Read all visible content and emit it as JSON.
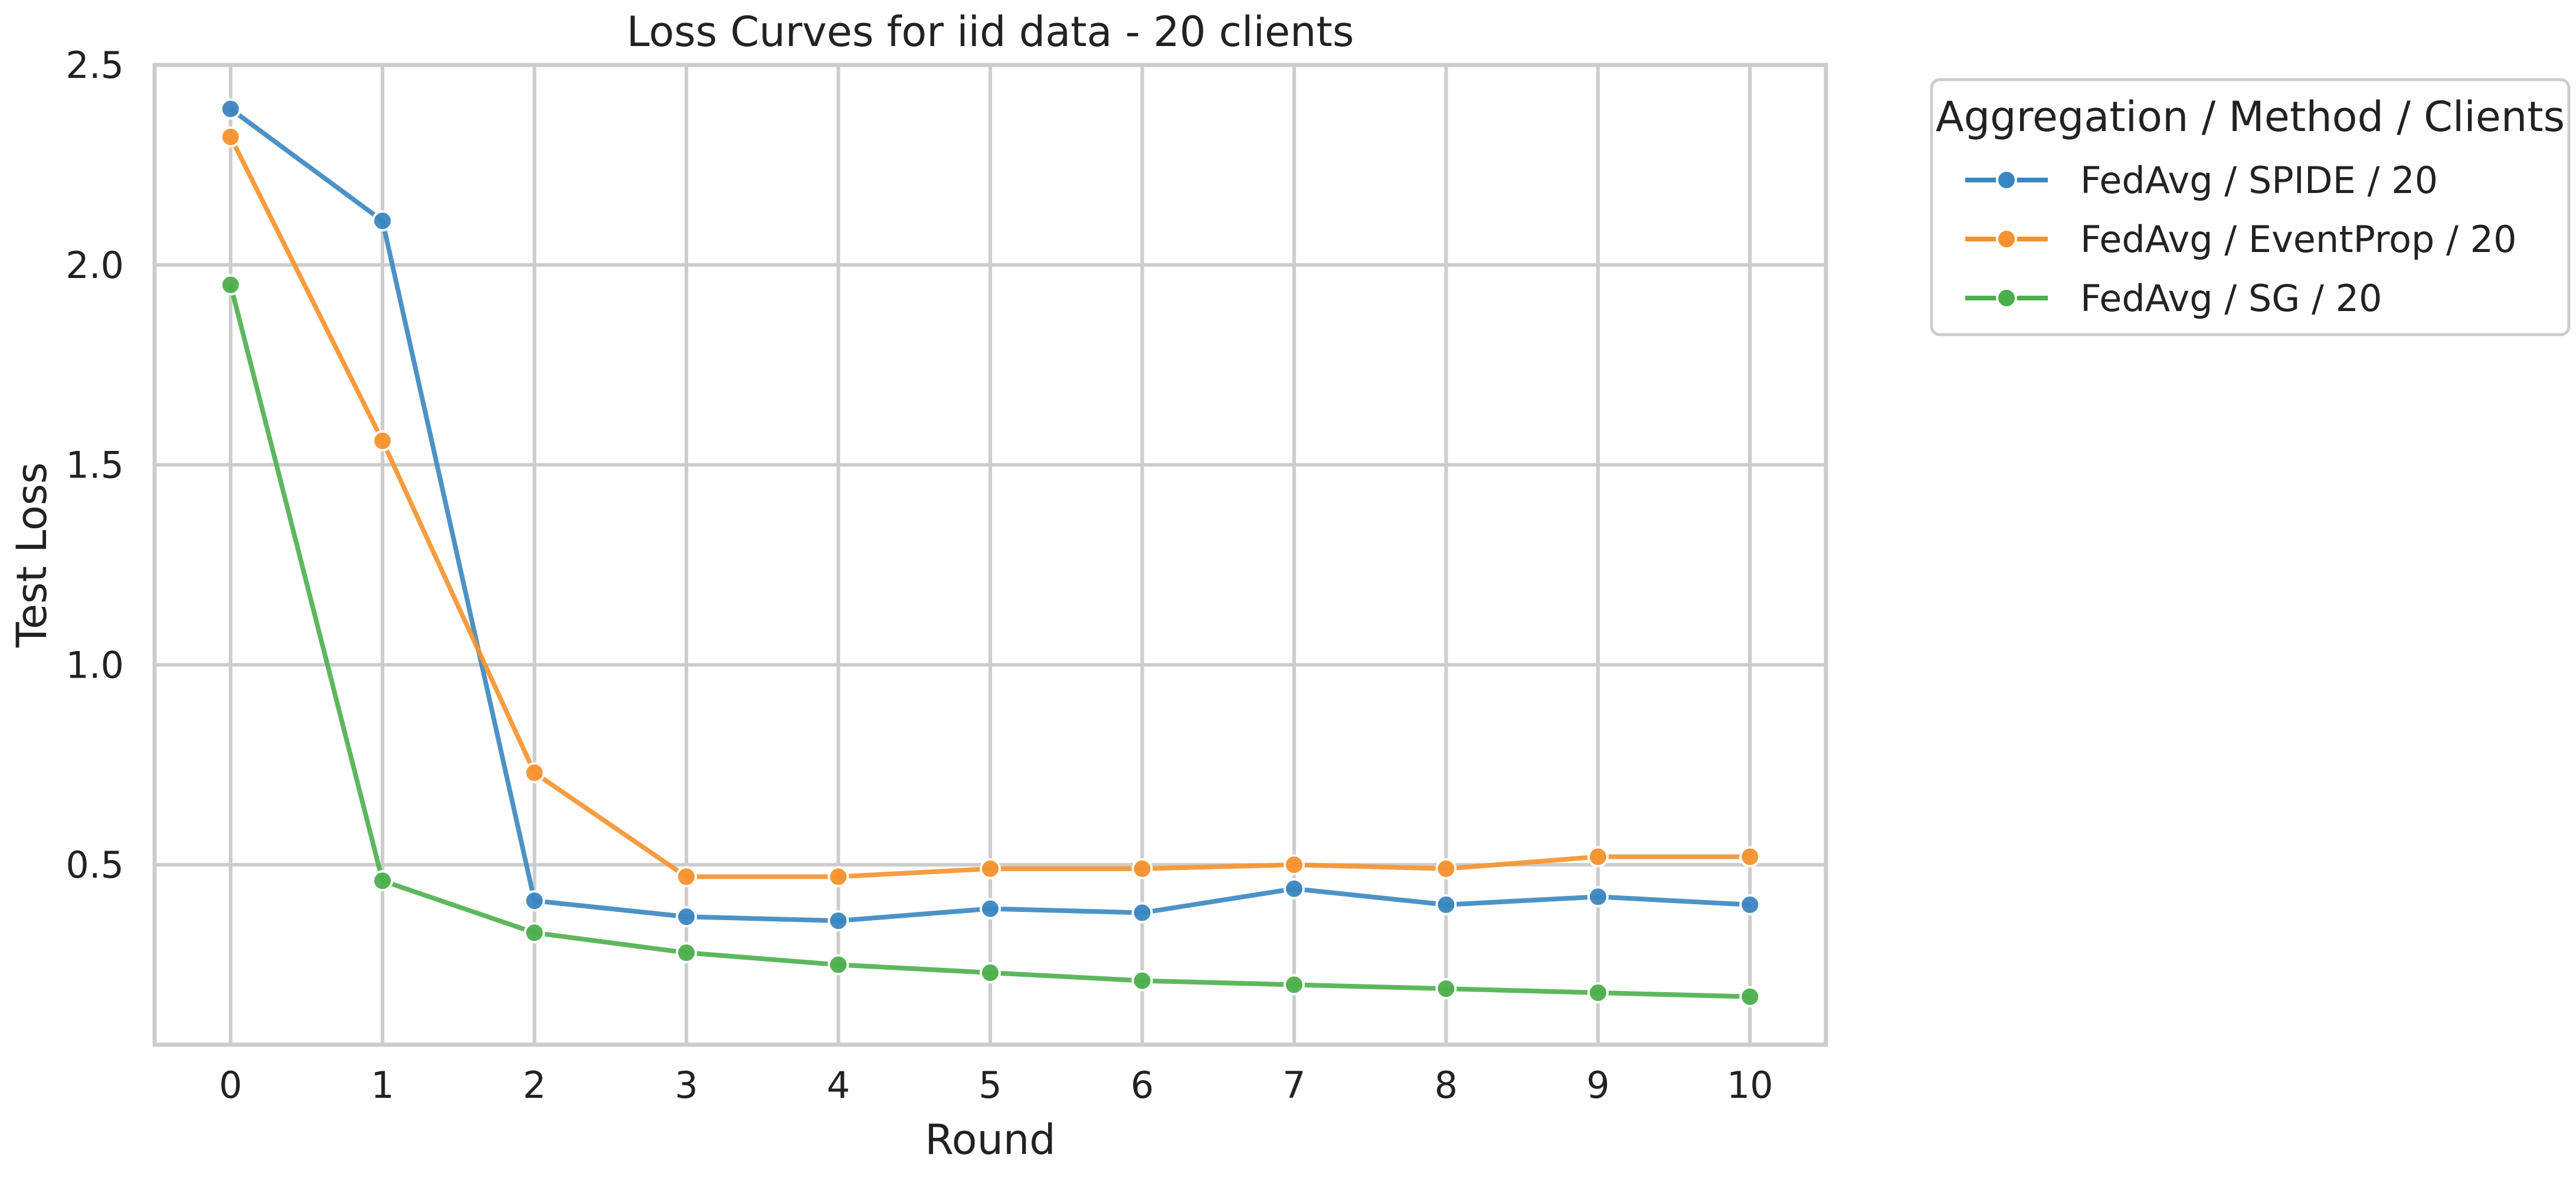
{
  "chart_data": {
    "type": "line",
    "title": "Loss Curves for iid data - 20 clients",
    "xlabel": "Round",
    "ylabel": "Test Loss",
    "x": [
      0,
      1,
      2,
      3,
      4,
      5,
      6,
      7,
      8,
      9,
      10
    ],
    "x_tick_labels": [
      "0",
      "1",
      "2",
      "3",
      "4",
      "5",
      "6",
      "7",
      "8",
      "9",
      "10"
    ],
    "y_tick_labels": [
      "0.5",
      "1.0",
      "1.5",
      "2.0",
      "2.5"
    ],
    "y_ticks": [
      0.5,
      1.0,
      1.5,
      2.0,
      2.5
    ],
    "xlim": [
      -0.5,
      10.5
    ],
    "ylim": [
      0.05,
      2.5
    ],
    "grid": true,
    "legend": {
      "title": "Aggregation / Method / Clients",
      "placement": "outside-right-top"
    },
    "series": [
      {
        "name": "FedAvg / SPIDE / 20",
        "color": "#3a86c0",
        "marker": "circle",
        "values": [
          2.39,
          2.11,
          0.41,
          0.37,
          0.36,
          0.39,
          0.38,
          0.44,
          0.4,
          0.42,
          0.4
        ]
      },
      {
        "name": "FedAvg / EventProp / 20",
        "color": "#f5922e",
        "marker": "circle",
        "values": [
          2.32,
          1.56,
          0.73,
          0.47,
          0.47,
          0.49,
          0.49,
          0.5,
          0.49,
          0.52,
          0.52
        ]
      },
      {
        "name": "FedAvg / SG / 20",
        "color": "#4caf4c",
        "marker": "circle",
        "values": [
          1.95,
          0.46,
          0.33,
          0.28,
          0.25,
          0.23,
          0.21,
          0.2,
          0.19,
          0.18,
          0.17
        ]
      }
    ]
  }
}
